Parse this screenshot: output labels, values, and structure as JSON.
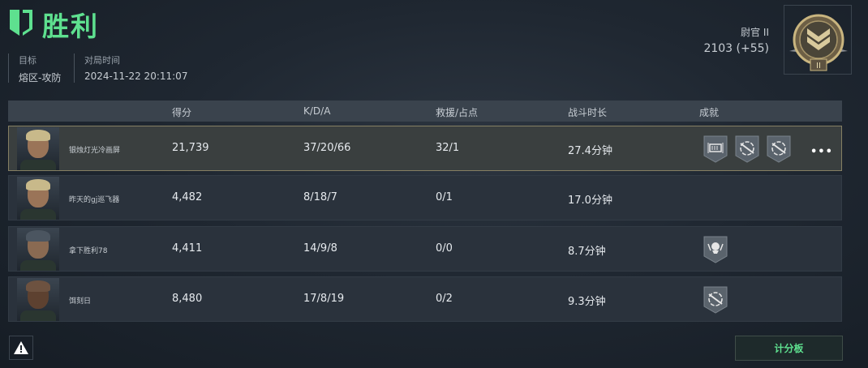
{
  "header": {
    "result": "胜利",
    "logo_icon": "shield-icon",
    "accent": "#5ee08f"
  },
  "meta": {
    "target_label": "目标",
    "target_value": "熔区-攻防",
    "time_label": "对局时间",
    "time_value": "2024-11-22 20:11:07"
  },
  "rank": {
    "title": "尉官 II",
    "score": "2103 (+55)",
    "badge_icon": "rank-chevron-badge-icon"
  },
  "table": {
    "headers": [
      "得分",
      "K/D/A",
      "救援/占点",
      "战斗时长",
      "成就"
    ],
    "rows": [
      {
        "name": "银烛灯光冷画屏",
        "score": "21,739",
        "kda": "37/20/66",
        "rescue": "32/1",
        "duration": "27.4分钟",
        "achievements": [
          "ammo-box-icon",
          "crosshair-rifle-icon",
          "crosshair-rifle-icon"
        ],
        "more": "•••",
        "highlight": true
      },
      {
        "name": "昨天的gj巡飞器",
        "score": "4,482",
        "kda": "8/18/7",
        "rescue": "0/1",
        "duration": "17.0分钟",
        "achievements": []
      },
      {
        "name": "拿下胜利78",
        "score": "4,411",
        "kda": "14/9/8",
        "rescue": "0/0",
        "duration": "8.7分钟",
        "achievements": [
          "skull-icon"
        ]
      },
      {
        "name": "饵刻日",
        "score": "8,480",
        "kda": "17/8/19",
        "rescue": "0/2",
        "duration": "9.3分钟",
        "achievements": [
          "crosshair-rifle-icon"
        ]
      }
    ]
  },
  "footer": {
    "report_icon": "warning-icon",
    "scoreboard_label": "计分板"
  }
}
